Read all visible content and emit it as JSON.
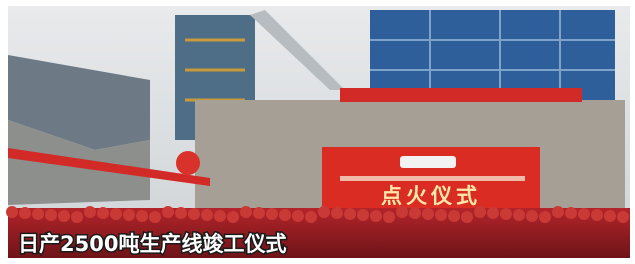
{
  "photo": {
    "banner_text": "点火仪式",
    "caption": "日产2500吨生产线竣工仪式"
  }
}
